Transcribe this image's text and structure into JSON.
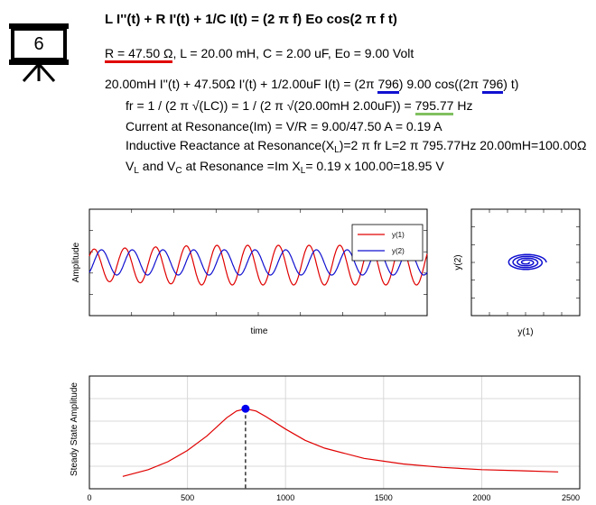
{
  "slide_number": "6",
  "equation": "L I''(t) + R I'(t) + 1/C I(t) = (2 π f) Eo cos(2 π f t)",
  "params": {
    "r_part": "R = 47.50 Ω",
    "rest": ", L = 20.00 mH, C = 2.00 uF, Eo = 9.00 Volt"
  },
  "ode": {
    "prefix": "20.00mH I''(t) + 47.50Ω I'(t) + 1/2.00uF I(t) = (2π ",
    "f1": "796",
    "mid": ") 9.00 cos((2π ",
    "f2": "796",
    "suffix": ") t)"
  },
  "resonance": {
    "fr_prefix": "fr = 1 / (2 π √(LC)) = 1 / (2 π √(20.00mH 2.00uF)) = ",
    "fr_value": "795.77",
    "fr_unit": " Hz",
    "current": "Current at Resonance(Im) = V/R = 9.00/47.50 A = 0.19 A",
    "xl_prefix": "Inductive Reactance at Resonance(X",
    "xl_sub": "L",
    "xl_suffix": ")=2 π fr L=2 π 795.77Hz 20.00mH=100.00Ω",
    "v_prefix": "V",
    "v_sub1": "L",
    "v_and": " and V",
    "v_sub2": "C",
    "v_mid": " at Resonance =Im X",
    "v_sub3": "L",
    "v_suffix": "= 0.19 x 100.00=18.95 V"
  },
  "time_plot": {
    "ylabel": "Amplitude",
    "xlabel": "time",
    "legend": [
      {
        "name": "y(1)",
        "color": "#e00000"
      },
      {
        "name": "y(2)",
        "color": "#1010d0"
      }
    ]
  },
  "phase_plot": {
    "xlabel": "y(1)",
    "ylabel": "y(2)",
    "color": "#1010d0"
  },
  "chart_data": {
    "type": "line",
    "ylabel": "Steady State Amplitude",
    "xlabel": "",
    "x_ticks": [
      "0",
      "500",
      "1000",
      "1500",
      "2000",
      "2500"
    ],
    "xlim": [
      0,
      2500
    ],
    "series": [
      {
        "color": "#e00000",
        "x": [
          170,
          300,
          400,
          500,
          600,
          700,
          750,
          796,
          850,
          900,
          1000,
          1100,
          1200,
          1400,
          1600,
          1800,
          2000,
          2200,
          2390
        ],
        "values": [
          0.11,
          0.17,
          0.24,
          0.34,
          0.47,
          0.63,
          0.69,
          0.71,
          0.69,
          0.64,
          0.53,
          0.43,
          0.36,
          0.27,
          0.22,
          0.19,
          0.17,
          0.16,
          0.15
        ]
      }
    ],
    "ylim": [
      0,
      1
    ],
    "marker": {
      "x": 796,
      "y": 0.71,
      "color": "#0000ee"
    },
    "grid": true
  }
}
